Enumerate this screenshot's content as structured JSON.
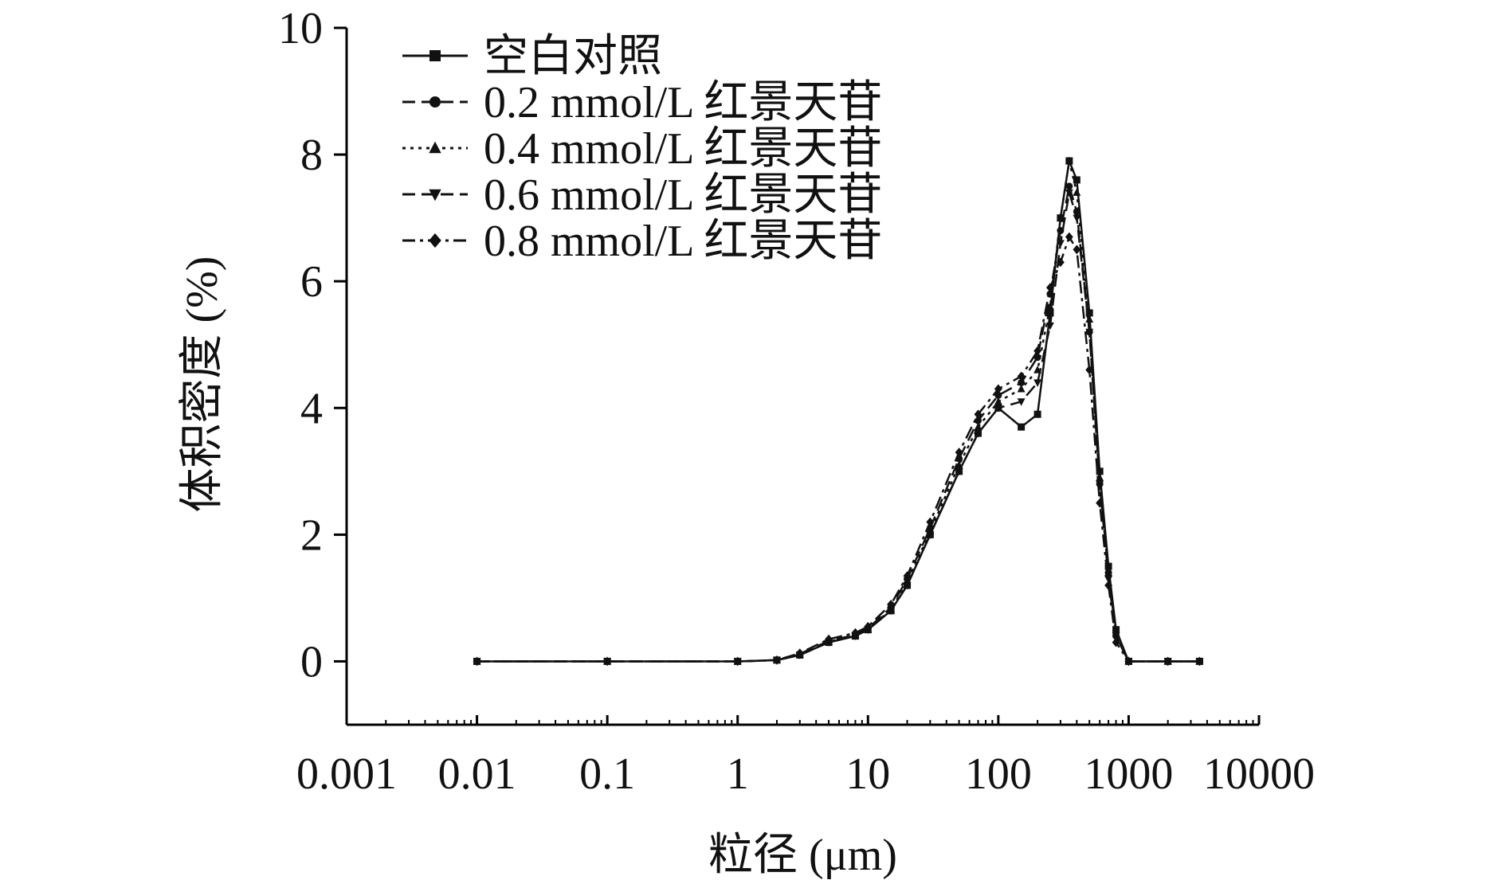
{
  "chart_data": {
    "type": "line",
    "title": "",
    "xlabel": "粒径 (μm)",
    "ylabel": "体积密度 (%)",
    "x_scale": "log",
    "xlim": [
      0.001,
      10000
    ],
    "ylim": [
      -1,
      10
    ],
    "x_ticks": [
      0.001,
      0.01,
      0.1,
      1,
      10,
      100,
      1000,
      10000
    ],
    "x_tick_labels": [
      "0.001",
      "0.01",
      "0.1",
      "1",
      "10",
      "100",
      "1000",
      "10000"
    ],
    "y_ticks": [
      0,
      2,
      4,
      6,
      8,
      10
    ],
    "y_tick_labels": [
      "0",
      "2",
      "4",
      "6",
      "8",
      "10"
    ],
    "grid": false,
    "legend_position": "top-left",
    "x": [
      0.01,
      0.1,
      1,
      2,
      3,
      5,
      8,
      10,
      15,
      20,
      30,
      50,
      70,
      100,
      150,
      200,
      250,
      300,
      350,
      400,
      500,
      600,
      700,
      800,
      1000,
      2000,
      3500
    ],
    "series": [
      {
        "name": "空白对照",
        "marker": "square",
        "line": "solid",
        "values": [
          0,
          0,
          0,
          0.02,
          0.1,
          0.3,
          0.4,
          0.5,
          0.8,
          1.2,
          2.0,
          3.0,
          3.6,
          4.0,
          3.7,
          3.9,
          5.5,
          7.0,
          7.9,
          7.6,
          5.5,
          3.0,
          1.5,
          0.5,
          0,
          0,
          0
        ]
      },
      {
        "name": "0.2 mmol/L 红景天苷",
        "marker": "circle",
        "line": "dashed",
        "values": [
          0,
          0,
          0,
          0.02,
          0.12,
          0.32,
          0.42,
          0.52,
          0.85,
          1.3,
          2.1,
          3.2,
          3.8,
          4.2,
          4.4,
          4.8,
          5.8,
          6.8,
          7.5,
          7.1,
          5.2,
          2.8,
          1.4,
          0.4,
          0,
          0,
          0
        ]
      },
      {
        "name": "0.4 mmol/L 红景天苷",
        "marker": "triangle",
        "line": "dotted",
        "values": [
          0,
          0,
          0,
          0.02,
          0.11,
          0.31,
          0.41,
          0.5,
          0.82,
          1.25,
          2.05,
          3.1,
          3.7,
          4.1,
          4.3,
          4.6,
          5.6,
          7.0,
          7.9,
          7.4,
          5.4,
          2.9,
          1.4,
          0.45,
          0,
          0,
          0
        ]
      },
      {
        "name": "0.6 mmol/L 红景天苷",
        "marker": "triangle-down",
        "line": "dashed",
        "values": [
          0,
          0,
          0,
          0.02,
          0.1,
          0.3,
          0.4,
          0.5,
          0.8,
          1.2,
          2.0,
          3.0,
          3.6,
          4.0,
          4.1,
          4.4,
          5.3,
          6.6,
          7.4,
          7.0,
          5.2,
          2.8,
          1.3,
          0.4,
          0,
          0,
          0
        ]
      },
      {
        "name": "0.8 mmol/L 红景天苷",
        "marker": "diamond",
        "line": "dash-dot",
        "values": [
          0,
          0,
          0,
          0.02,
          0.13,
          0.35,
          0.45,
          0.55,
          0.9,
          1.35,
          2.2,
          3.3,
          3.9,
          4.3,
          4.5,
          4.9,
          5.9,
          6.3,
          6.7,
          6.5,
          4.6,
          2.5,
          1.2,
          0.3,
          0,
          0,
          0
        ]
      }
    ]
  }
}
